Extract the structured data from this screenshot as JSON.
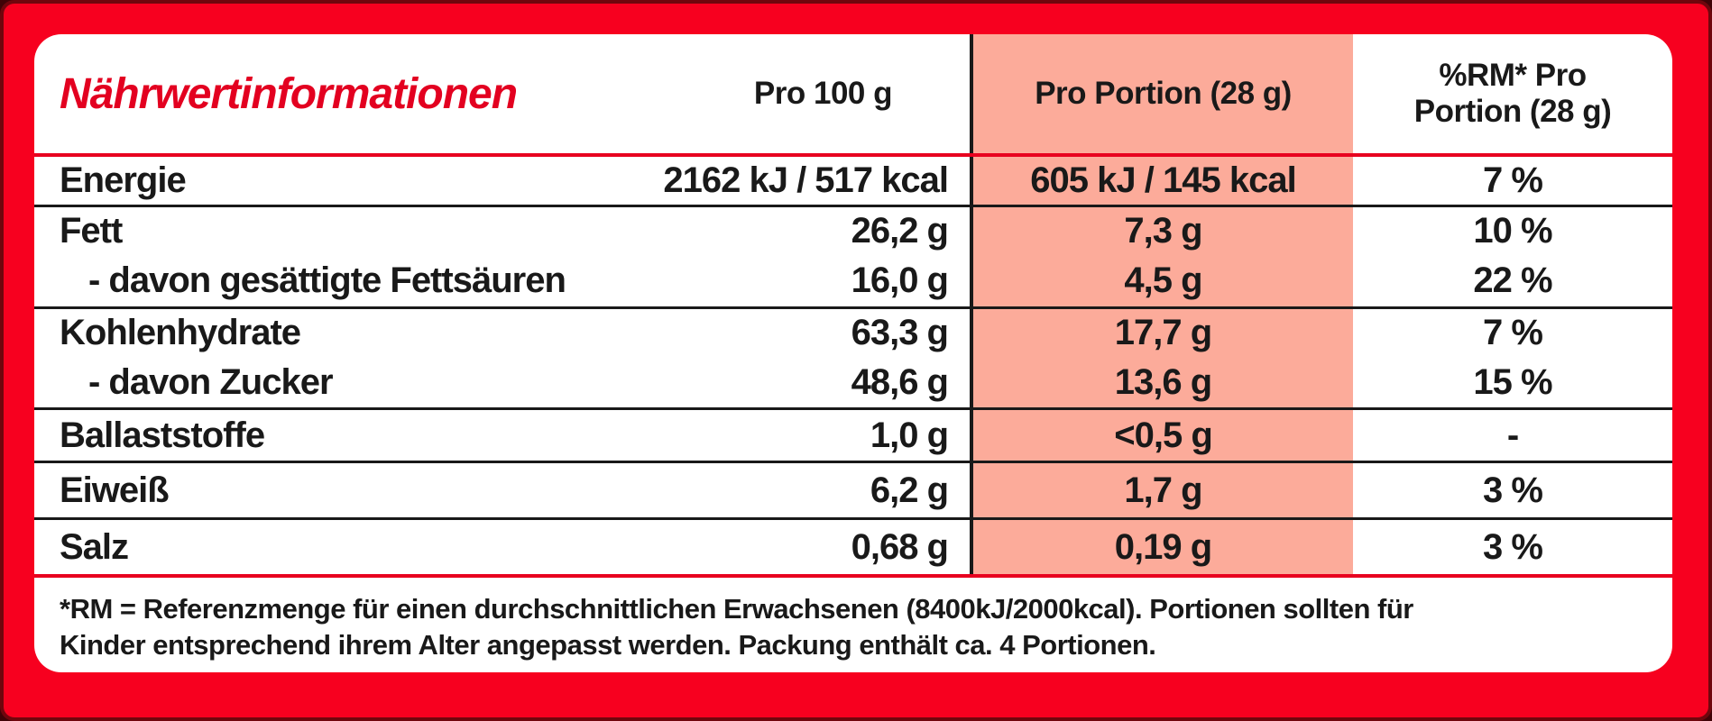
{
  "colors": {
    "background_red": "#f7001f",
    "card_white": "#ffffff",
    "portion_column_salmon": "#fcab9a",
    "title_red": "#e30020",
    "separator_red": "#e8001f",
    "text_black": "#191919"
  },
  "table": {
    "title": "Nährwertinformationen",
    "columns": {
      "per100": "Pro 100 g",
      "portion": "Pro Portion (28 g)",
      "rm_line1": "%RM* Pro",
      "rm_line2": "Portion (28 g)"
    },
    "rows": [
      {
        "label": "Energie",
        "per100": "2162 kJ / 517 kcal",
        "portion": "605 kJ / 145 kcal",
        "rm": "7 %",
        "indent": false,
        "separator": "red"
      },
      {
        "label": "Fett",
        "per100": "26,2 g",
        "portion": "7,3 g",
        "rm": "10 %",
        "indent": false,
        "separator": "black"
      },
      {
        "label": "- davon gesättigte Fettsäuren",
        "per100": "16,0 g",
        "portion": "4,5 g",
        "rm": "22 %",
        "indent": true,
        "separator": "none"
      },
      {
        "label": "Kohlenhydrate",
        "per100": "63,3 g",
        "portion": "17,7 g",
        "rm": "7 %",
        "indent": false,
        "separator": "black"
      },
      {
        "label": "- davon Zucker",
        "per100": "48,6 g",
        "portion": "13,6 g",
        "rm": "15 %",
        "indent": true,
        "separator": "none"
      },
      {
        "label": "Ballaststoffe",
        "per100": "1,0 g",
        "portion": "<0,5 g",
        "rm": "-",
        "indent": false,
        "separator": "black"
      },
      {
        "label": "Eiweiß",
        "per100": "6,2 g",
        "portion": "1,7 g",
        "rm": "3 %",
        "indent": false,
        "separator": "black"
      },
      {
        "label": "Salz",
        "per100": "0,68 g",
        "portion": "0,19 g",
        "rm": "3 %",
        "indent": false,
        "separator": "black"
      }
    ],
    "footnote_lines": [
      "*RM = Referenzmenge für einen durchschnittlichen Erwachsenen (8400kJ/2000kcal). Portionen sollten für",
      "Kinder entsprechend ihrem Alter angepasst werden. Packung enthält ca. 4 Portionen."
    ]
  }
}
